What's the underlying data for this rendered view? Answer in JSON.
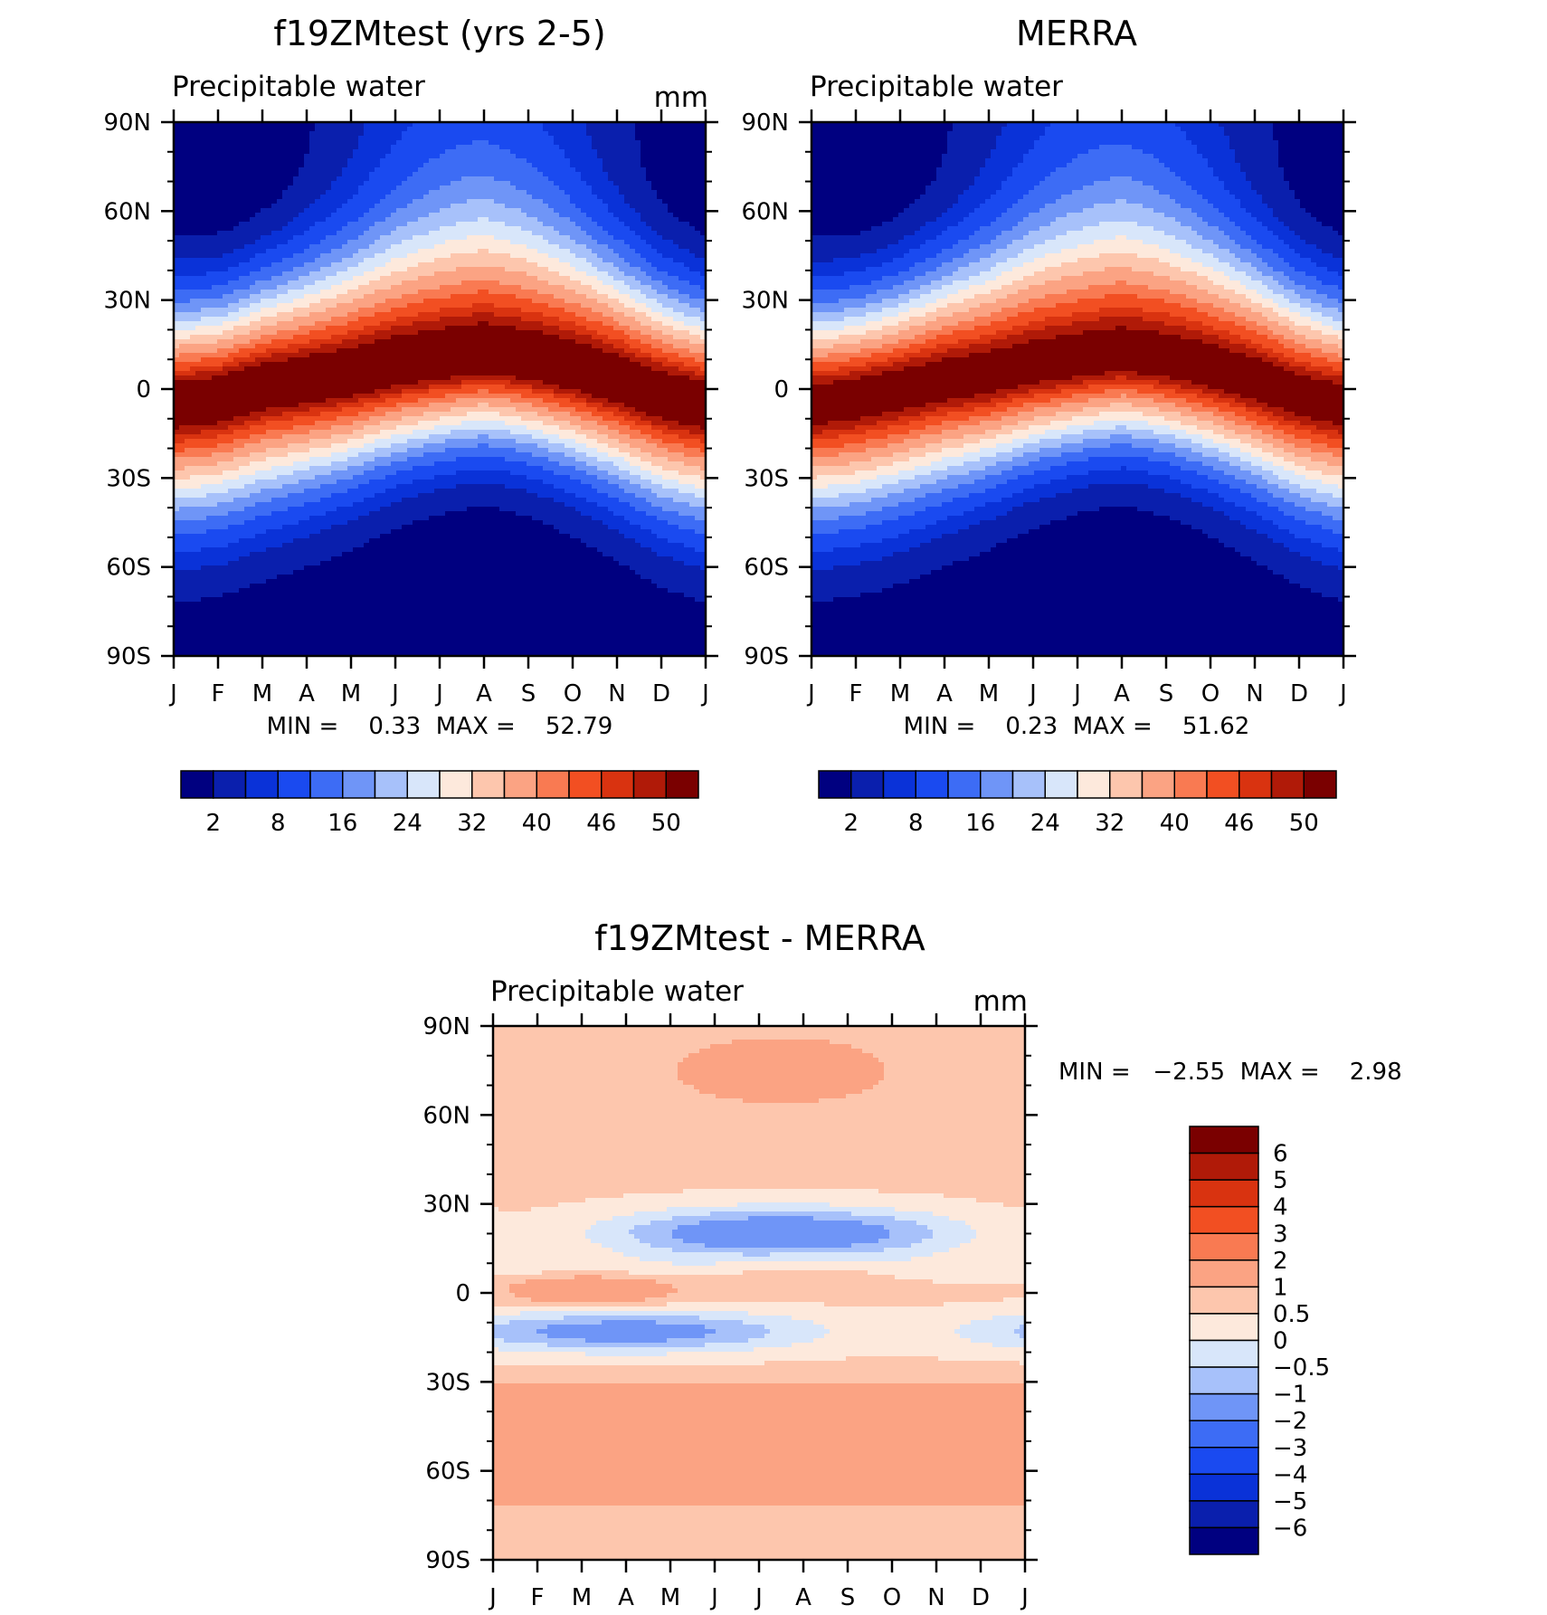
{
  "chart_data": [
    {
      "type": "heatmap",
      "title": "f19ZMtest (yrs 2-5)",
      "subtitle": "Precipitable water",
      "units": "mm",
      "x_ticks": [
        "J",
        "F",
        "M",
        "A",
        "M",
        "J",
        "J",
        "A",
        "S",
        "O",
        "N",
        "D",
        "J"
      ],
      "y_ticks": [
        "90N",
        "60N",
        "30N",
        "0",
        "30S",
        "60S",
        "90S"
      ],
      "y_values": [
        90,
        60,
        30,
        0,
        -30,
        -60,
        -90
      ],
      "stats_text": "MIN =    0.33  MAX =    52.79",
      "colorbar_levels": [
        2,
        5,
        8,
        12,
        16,
        20,
        24,
        28,
        32,
        36,
        40,
        43,
        46,
        48,
        50
      ],
      "colorbar_labels": [
        "2",
        "8",
        "16",
        "24",
        "32",
        "40",
        "46",
        "50"
      ],
      "colorbar_colors": [
        "#000080",
        "#0a1fad",
        "#0a32d8",
        "#1a4af0",
        "#3d6cf5",
        "#6f95f7",
        "#a7c1fa",
        "#d8e6fa",
        "#fde9dc",
        "#fdc6ad",
        "#fba383",
        "#f97a52",
        "#f24f22",
        "#d93310",
        "#b01a08",
        "#7a0000"
      ],
      "seasonal_cycle": {
        "equator_max_latitude_deg": [
          -5,
          -3,
          1,
          3,
          5,
          8,
          10,
          12,
          10,
          7,
          3,
          -2,
          -5
        ],
        "max_value": 52.79,
        "min_value": 0.33
      }
    },
    {
      "type": "heatmap",
      "title": "MERRA",
      "subtitle": "Precipitable water",
      "x_ticks": [
        "J",
        "F",
        "M",
        "A",
        "M",
        "J",
        "J",
        "A",
        "S",
        "O",
        "N",
        "D",
        "J"
      ],
      "y_ticks": [
        "90N",
        "60N",
        "30N",
        "0",
        "30S",
        "60S",
        "90S"
      ],
      "y_values": [
        90,
        60,
        30,
        0,
        -30,
        -60,
        -90
      ],
      "stats_text": "MIN =    0.23  MAX =    51.62",
      "colorbar_levels": [
        2,
        5,
        8,
        12,
        16,
        20,
        24,
        28,
        32,
        36,
        40,
        43,
        46,
        48,
        50
      ],
      "colorbar_labels": [
        "2",
        "8",
        "16",
        "24",
        "32",
        "40",
        "46",
        "50"
      ],
      "seasonal_cycle": {
        "equator_max_latitude_deg": [
          -5,
          -3,
          0,
          3,
          5,
          8,
          10,
          12,
          10,
          7,
          3,
          -2,
          -5
        ],
        "max_value": 51.62,
        "min_value": 0.23
      }
    },
    {
      "type": "heatmap",
      "title": "f19ZMtest - MERRA",
      "subtitle": "Precipitable water",
      "units": "mm",
      "x_ticks": [
        "J",
        "F",
        "M",
        "A",
        "M",
        "J",
        "J",
        "A",
        "S",
        "O",
        "N",
        "D",
        "J"
      ],
      "y_ticks": [
        "90N",
        "60N",
        "30N",
        "0",
        "30S",
        "60S",
        "90S"
      ],
      "y_values": [
        90,
        60,
        30,
        0,
        -30,
        -60,
        -90
      ],
      "stats_text": "MIN =   −2.55  MAX =    2.98",
      "colorbar_levels": [
        -6,
        -5,
        -4,
        -3,
        -2,
        -1,
        -0.5,
        0,
        0.5,
        1,
        2,
        3,
        4,
        5,
        6
      ],
      "colorbar_labels": [
        "6",
        "5",
        "4",
        "3",
        "2",
        "1",
        "0.5",
        "0",
        "−0.5",
        "−1",
        "−2",
        "−3",
        "−4",
        "−5",
        "−6"
      ],
      "colorbar_colors": [
        "#000080",
        "#0a1fad",
        "#0a32d8",
        "#1a4af0",
        "#3d6cf5",
        "#6f95f7",
        "#a7c1fa",
        "#d8e6fa",
        "#fde9dc",
        "#fdc6ad",
        "#fba383",
        "#f97a52",
        "#f24f22",
        "#d93310",
        "#b01a08",
        "#7a0000"
      ],
      "min_value": -2.55,
      "max_value": 2.98
    }
  ]
}
